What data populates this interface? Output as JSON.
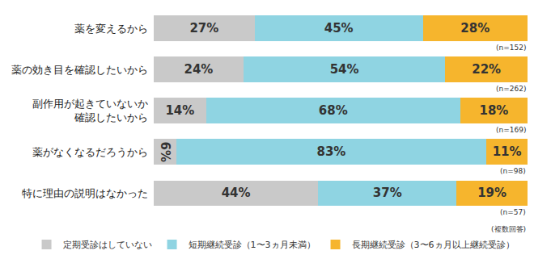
{
  "chart_data": {
    "type": "bar",
    "orientation": "horizontal",
    "stacked": true,
    "data_labels": true,
    "tick_labels": "y",
    "grid": false,
    "legend": "bottom",
    "xlim": [
      0,
      100
    ],
    "categories": [
      "薬を変えるから",
      "薬の効き目を確認したいから",
      "副作用が起きていないか\n確認したいから",
      "薬がなくなるだろうから",
      "特に理由の説明はなかった"
    ],
    "annotations": [
      "(n=152)",
      "(n=262)",
      "(n=169)",
      "(n=98)",
      "(n=57)"
    ],
    "note": "(複数回答)",
    "series": [
      {
        "name": "定期受診はしていない",
        "color": "#c9c9c9",
        "values": [
          27,
          24,
          14,
          6,
          44
        ],
        "value_labels": [
          "27%",
          "24%",
          "14%",
          "6%",
          "44%"
        ]
      },
      {
        "name": "短期継続受診（1〜3ヵ月未満）",
        "color": "#8fd4e2",
        "values": [
          45,
          54,
          68,
          83,
          37
        ],
        "value_labels": [
          "45%",
          "54%",
          "68%",
          "83%",
          "37%"
        ]
      },
      {
        "name": "長期継続受診（3〜6ヵ月以上継続受診）",
        "color": "#f6b52d",
        "values": [
          28,
          22,
          18,
          11,
          19
        ],
        "value_labels": [
          "28%",
          "22%",
          "18%",
          "11%",
          "19%"
        ]
      }
    ]
  }
}
